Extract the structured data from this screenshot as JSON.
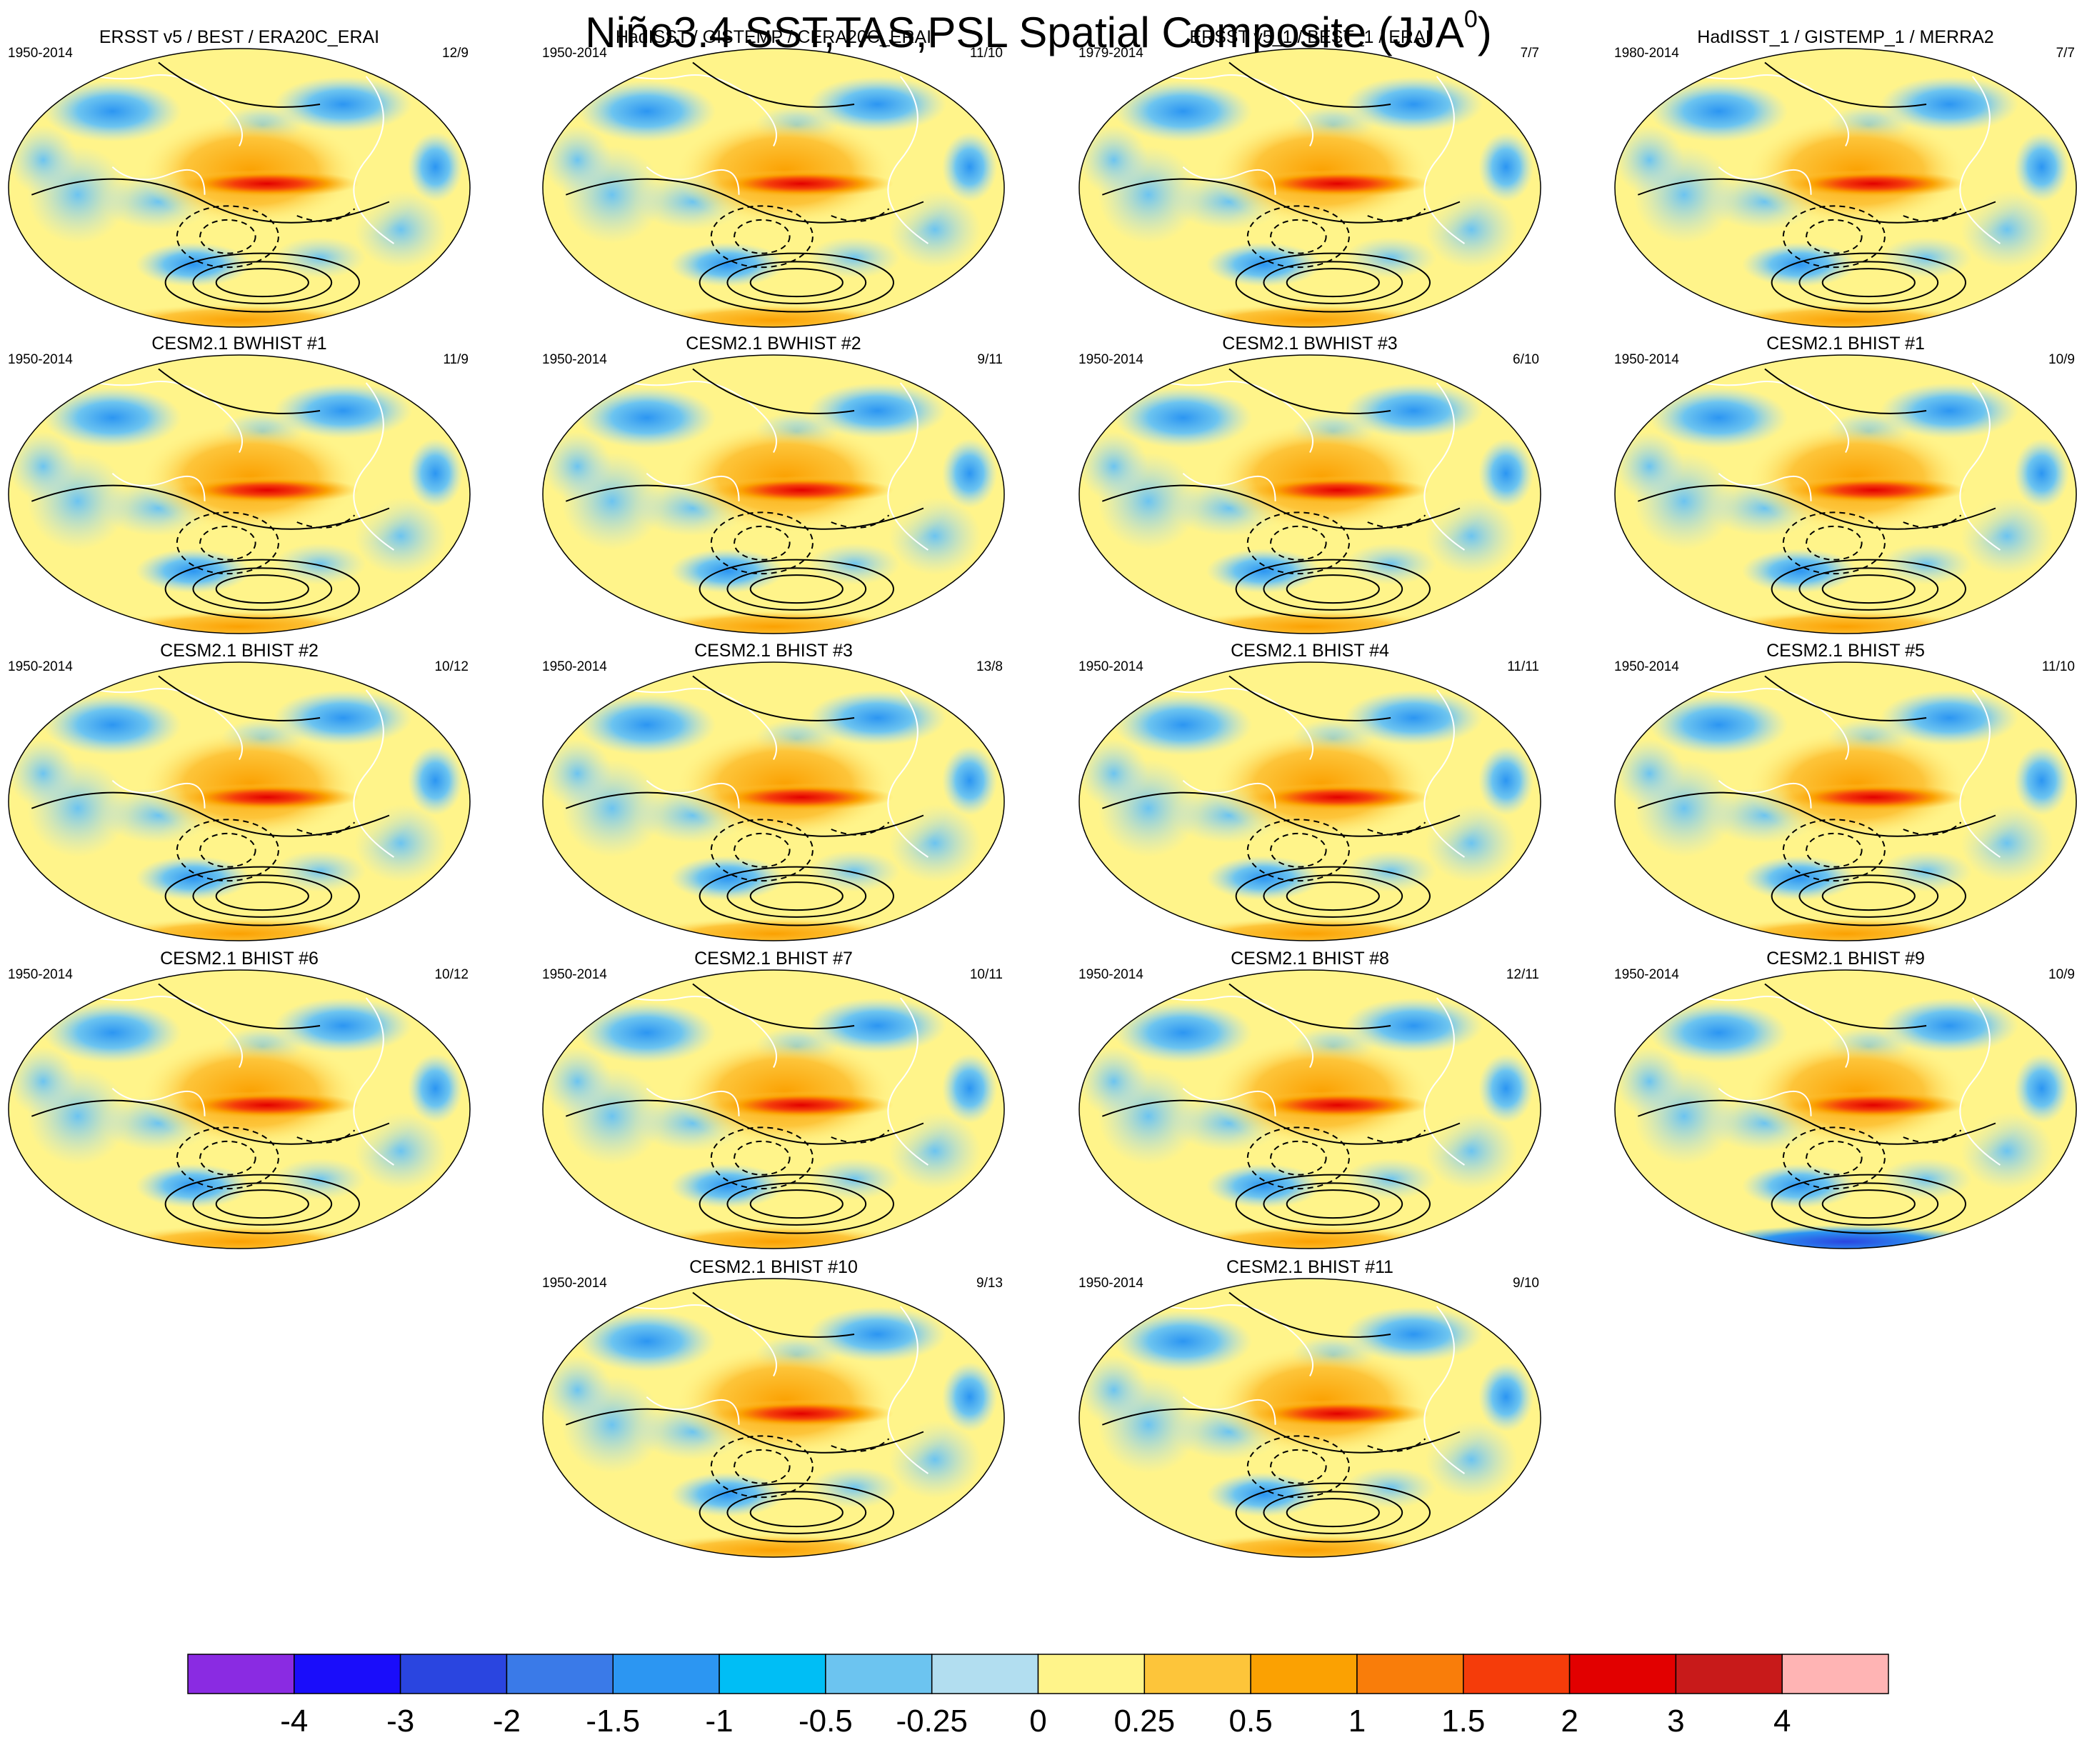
{
  "chart_data": {
    "type": "map-panels",
    "title": "Niño3.4 SST,TAS,PSL Spatial Composite (JJA",
    "title_sup": "0",
    "title_close": ")",
    "panels": [
      {
        "title": "ERSST v5 / BEST / ERA20C_ERAI",
        "years": "1950-2014",
        "count": "12/9"
      },
      {
        "title": "HadISST / GISTEMP / CERA20C_ERAI",
        "years": "1950-2014",
        "count": "11/10"
      },
      {
        "title": "ERSST v5_1 / BEST_1 / ERAI",
        "years": "1979-2014",
        "count": "7/7"
      },
      {
        "title": "HadISST_1 / GISTEMP_1 / MERRA2",
        "years": "1980-2014",
        "count": "7/7"
      },
      {
        "title": "CESM2.1 BWHIST #1",
        "years": "1950-2014",
        "count": "11/9"
      },
      {
        "title": "CESM2.1 BWHIST #2",
        "years": "1950-2014",
        "count": "9/11"
      },
      {
        "title": "CESM2.1 BWHIST #3",
        "years": "1950-2014",
        "count": "6/10"
      },
      {
        "title": "CESM2.1 BHIST #1",
        "years": "1950-2014",
        "count": "10/9"
      },
      {
        "title": "CESM2.1 BHIST #2",
        "years": "1950-2014",
        "count": "10/12"
      },
      {
        "title": "CESM2.1 BHIST #3",
        "years": "1950-2014",
        "count": "13/8"
      },
      {
        "title": "CESM2.1 BHIST #4",
        "years": "1950-2014",
        "count": "11/11"
      },
      {
        "title": "CESM2.1 BHIST #5",
        "years": "1950-2014",
        "count": "11/10"
      },
      {
        "title": "CESM2.1 BHIST #6",
        "years": "1950-2014",
        "count": "10/12"
      },
      {
        "title": "CESM2.1 BHIST #7",
        "years": "1950-2014",
        "count": "10/11"
      },
      {
        "title": "CESM2.1 BHIST #8",
        "years": "1950-2014",
        "count": "12/11"
      },
      {
        "title": "CESM2.1 BHIST #9",
        "years": "1950-2014",
        "count": "10/9"
      },
      {
        "title": "CESM2.1 BHIST #10",
        "years": "1950-2014",
        "count": "9/13"
      },
      {
        "title": "CESM2.1 BHIST #11",
        "years": "1950-2014",
        "count": "9/10"
      }
    ],
    "colorbar": {
      "colors": [
        "#8a2be2",
        "#1a0dfa",
        "#2a45e0",
        "#3a7ae8",
        "#2c96f2",
        "#00bef5",
        "#6cc4f0",
        "#b2def0",
        "#fff48a",
        "#fdc53a",
        "#fba102",
        "#f97d0a",
        "#f53c0a",
        "#e20000",
        "#c81a1a",
        "#ffb4b4"
      ],
      "labels": [
        "-4",
        "-3",
        "-2",
        "-1.5",
        "-1",
        "-0.5",
        "-0.25",
        "0",
        "0.25",
        "0.5",
        "1",
        "1.5",
        "2",
        "3",
        "4"
      ]
    }
  }
}
